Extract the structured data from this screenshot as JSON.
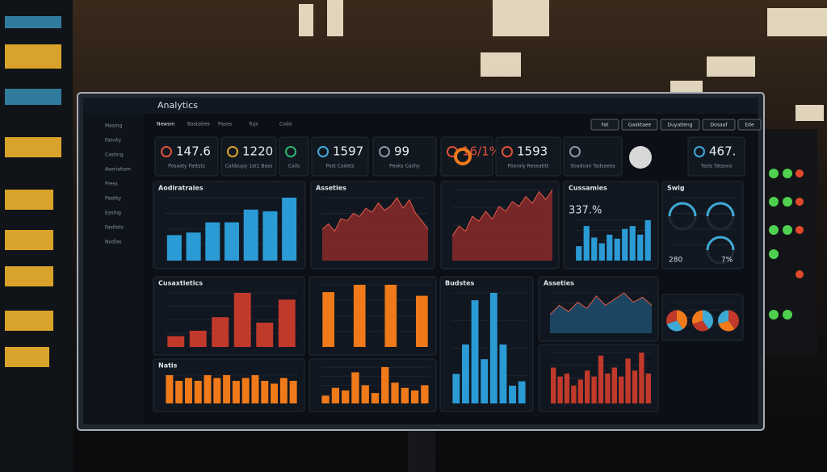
{
  "header": {
    "title": "Analytics",
    "buttons": [
      "Fat",
      "Gasktaee",
      "Duyatleng",
      "Dosaaf",
      "Ede"
    ]
  },
  "sidebar": [
    "Masing",
    "Fatvity",
    "Casting",
    "Aseriatism",
    "Press",
    "Pastity",
    "Easing",
    "Fastlets",
    "Nodlas"
  ],
  "tabs": [
    "Newsm",
    "Bastaties",
    "Pases",
    "Tujs",
    "Coda"
  ],
  "kpis": [
    {
      "value": "147.6",
      "label": "Posaaty Pattsts"
    },
    {
      "value": "1220",
      "label": "Caldsupy 1st1 Bass"
    },
    {
      "value": "",
      "label": "Cails"
    },
    {
      "value": "1597",
      "label": "Post Cadets"
    },
    {
      "value": "99",
      "label": "Peaks Cashy"
    },
    {
      "value": "16/1%",
      "label": ""
    },
    {
      "value": "1593",
      "label": "Pooraly Reseatitt"
    },
    {
      "value": "",
      "label": "Soadvan Tadsseea"
    },
    {
      "value": "467.",
      "label": "Tasls Tatssea"
    }
  ],
  "panels": [
    {
      "title": "Aodiratraies",
      "type": "bar",
      "color": "#2b9bd6",
      "values": [
        30,
        33,
        45,
        45,
        60,
        58,
        74
      ]
    },
    {
      "title": "Asseties",
      "type": "area",
      "color": "#8b2a2a",
      "values": [
        30,
        35,
        28,
        40,
        38,
        45,
        42,
        50,
        46,
        55,
        48,
        52,
        60,
        50,
        58,
        45,
        38,
        30
      ]
    },
    {
      "type": "area",
      "color": "#8b2a2a",
      "values": [
        25,
        35,
        30,
        45,
        40,
        50,
        42,
        55,
        50,
        60,
        55,
        65,
        58,
        70,
        62,
        72
      ]
    },
    {
      "title": "Cussamies",
      "headline": "337.%",
      "type": "bar",
      "color": "#2b9bd6",
      "values": [
        25,
        60,
        40,
        30,
        45,
        38,
        55,
        60,
        45,
        70
      ]
    },
    {
      "title": "Swig",
      "type": "gauge",
      "labels": [
        "280",
        "7%"
      ]
    },
    {
      "title": "Cusaxtietics",
      "type": "bar",
      "color": "#c0392b",
      "values": [
        8,
        12,
        22,
        40,
        18,
        35
      ]
    },
    {
      "type": "bar",
      "color": "#f07a1a",
      "values": [
        75,
        0,
        85,
        0,
        85,
        0,
        70
      ]
    },
    {
      "title": "Budstes",
      "type": "bar",
      "color": "#2b9bd6",
      "values": [
        20,
        40,
        70,
        30,
        75,
        40,
        12,
        15
      ]
    },
    {
      "title": "Asseties",
      "type": "area",
      "color": "#1f4e6e",
      "values": [
        30,
        45,
        35,
        50,
        40,
        60,
        45,
        55,
        65,
        50,
        58,
        45
      ]
    },
    {
      "type": "pie",
      "values": [
        40,
        30,
        30
      ]
    },
    {
      "title": "Natis",
      "type": "bar",
      "color": "#f07a1a",
      "values": [
        50,
        40,
        45,
        40,
        50,
        45,
        50,
        40,
        45,
        50,
        40,
        35,
        45,
        40
      ]
    },
    {
      "type": "bar",
      "color": "#c0392b",
      "values": [
        60,
        45,
        50,
        30,
        40,
        55,
        45,
        80,
        50,
        60,
        45,
        75,
        55,
        85,
        50
      ]
    },
    {
      "type": "bar",
      "color": "#f07a1a",
      "values": [
        15,
        30,
        25,
        60,
        35,
        20,
        70,
        40,
        30,
        25,
        35
      ]
    }
  ]
}
